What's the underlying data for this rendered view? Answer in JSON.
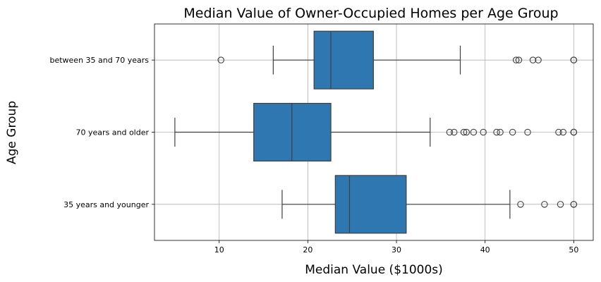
{
  "chart_data": {
    "type": "boxplot",
    "orientation": "horizontal",
    "title": "Median Value of Owner-Occupied Homes per Age Group",
    "xlabel": "Median Value ($1000s)",
    "ylabel": "Age Group",
    "xlim": [
      2.7,
      52.2
    ],
    "xticks": [
      10,
      20,
      30,
      40,
      50
    ],
    "grid": true,
    "color": "#2f77b1",
    "line_color": "#3f3f3f",
    "categories": [
      "between 35 and 70 years",
      "70 years and older",
      "35 years and younger"
    ],
    "boxes": [
      {
        "category": "between 35 and 70 years",
        "whisker_low": 16.1,
        "q1": 20.7,
        "median": 22.6,
        "q3": 27.4,
        "whisker_high": 37.2,
        "outliers": [
          10.2,
          43.5,
          43.8,
          45.4,
          46.0,
          50.0,
          50.0
        ]
      },
      {
        "category": "70 years and older",
        "whisker_low": 5.0,
        "q1": 13.9,
        "median": 18.2,
        "q3": 22.6,
        "whisker_high": 33.8,
        "outliers": [
          36.0,
          36.5,
          37.6,
          37.9,
          38.7,
          39.8,
          41.3,
          41.7,
          43.1,
          44.8,
          48.3,
          48.8,
          50.0,
          50.0,
          50.0
        ]
      },
      {
        "category": "35 years and younger",
        "whisker_low": 17.1,
        "q1": 23.1,
        "median": 24.7,
        "q3": 31.1,
        "whisker_high": 42.8,
        "outliers": [
          44.0,
          46.7,
          48.5,
          50.0,
          50.0
        ]
      }
    ]
  }
}
